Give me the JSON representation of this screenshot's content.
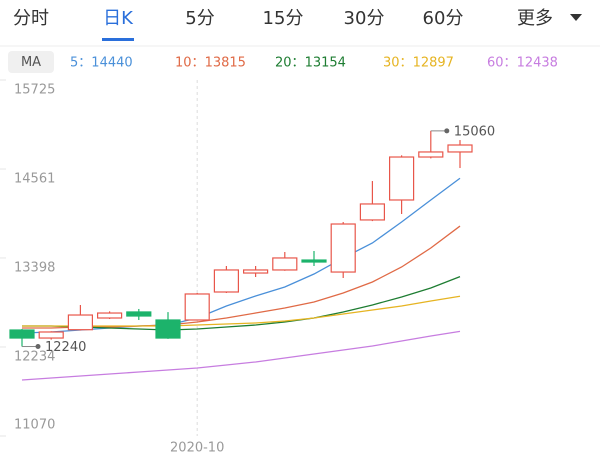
{
  "tabs": [
    "分时",
    "日K",
    "5分",
    "15分",
    "30分",
    "60分",
    "更多"
  ],
  "selected_tab": 1,
  "chart_data": {
    "type": "candlestick",
    "ma_label": "MA",
    "separator": "：",
    "categories": [
      null,
      null,
      null,
      null,
      null,
      null,
      "2020-10",
      null,
      null,
      null,
      null,
      null,
      null,
      null,
      null,
      null
    ],
    "open": [
      12456,
      12351,
      12460,
      12613,
      12692,
      12587,
      12587,
      12953,
      13201,
      13241,
      13371,
      13214,
      13895,
      14156,
      14718,
      14784
    ],
    "high": [
      12470,
      12440,
      12783,
      12700,
      12731,
      12690,
      12940,
      13293,
      13293,
      13476,
      13489,
      13868,
      14404,
      14740,
      15060,
      14940
    ],
    "low": [
      12240,
      12330,
      12450,
      12600,
      12587,
      12340,
      12580,
      12940,
      13149,
      13230,
      13293,
      13136,
      13880,
      13973,
      14700,
      14574
    ],
    "close": [
      12351,
      12430,
      12652,
      12678,
      12639,
      12351,
      12927,
      13241,
      13241,
      13398,
      13345,
      13842,
      14104,
      14718,
      14784,
      14875
    ],
    "up_color": "#e8564a",
    "down_color": "#1cb36b",
    "ylim": [
      11070,
      15725
    ],
    "yticks": [
      15725,
      14561,
      13398,
      12234,
      11070
    ],
    "max_label": {
      "index": 14,
      "field": "high"
    },
    "min_label": {
      "index": 0,
      "field": "low"
    },
    "ma": [
      {
        "name": "5",
        "value": 14440,
        "color": "#4a90d9",
        "values": [
          12417,
          12430,
          12456,
          12482,
          12508,
          12521,
          12613,
          12770,
          12901,
          13018,
          13188,
          13398,
          13594,
          13868,
          14156,
          14440
        ]
      },
      {
        "name": "10",
        "value": 13815,
        "color": "#e06a46",
        "values": [
          12482,
          12482,
          12495,
          12495,
          12508,
          12521,
          12561,
          12613,
          12678,
          12744,
          12822,
          12940,
          13084,
          13280,
          13528,
          13815
        ]
      },
      {
        "name": "20",
        "value": 13154,
        "color": "#1e7d32",
        "values": [
          12508,
          12508,
          12495,
          12482,
          12469,
          12456,
          12469,
          12495,
          12521,
          12561,
          12613,
          12692,
          12783,
          12888,
          13005,
          13154
        ]
      },
      {
        "name": "30",
        "value": 12897,
        "color": "#e6b422",
        "values": [
          12508,
          12508,
          12508,
          12508,
          12508,
          12508,
          12521,
          12534,
          12548,
          12574,
          12613,
          12665,
          12718,
          12770,
          12835,
          12897
        ]
      },
      {
        "name": "60",
        "value": 12438,
        "color": "#c77de0",
        "values": [
          11802,
          11828,
          11855,
          11881,
          11907,
          11933,
          11959,
          11998,
          12038,
          12090,
          12142,
          12195,
          12247,
          12312,
          12378,
          12438
        ]
      }
    ]
  }
}
